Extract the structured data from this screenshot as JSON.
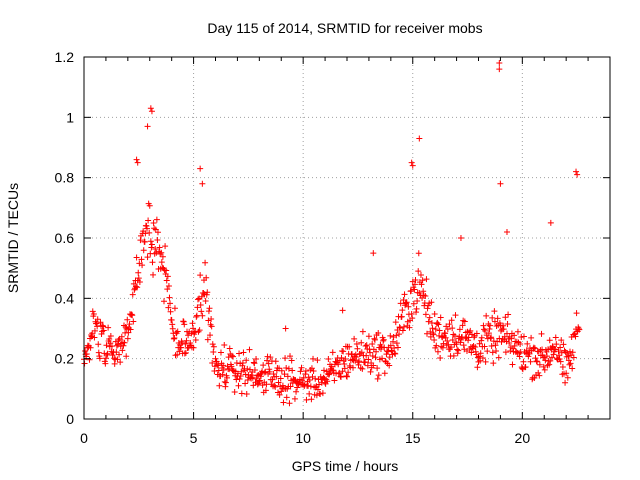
{
  "chart_data": {
    "type": "scatter",
    "title": "Day 115 of 2014, SRMTID for receiver mobs",
    "xlabel": "GPS time / hours",
    "ylabel": "SRMTID / TECUs",
    "xlim": [
      0,
      24
    ],
    "ylim": [
      0,
      1.2
    ],
    "grid": true,
    "marker": "+",
    "series": [
      {
        "name": "SRMTID",
        "color": "#ff0000",
        "profile": [
          {
            "x": 0.0,
            "y": 0.22
          },
          {
            "x": 0.5,
            "y": 0.3
          },
          {
            "x": 1.0,
            "y": 0.25
          },
          {
            "x": 1.5,
            "y": 0.22
          },
          {
            "x": 2.0,
            "y": 0.28
          },
          {
            "x": 2.5,
            "y": 0.5
          },
          {
            "x": 2.8,
            "y": 0.62
          },
          {
            "x": 3.2,
            "y": 0.6
          },
          {
            "x": 3.7,
            "y": 0.45
          },
          {
            "x": 4.2,
            "y": 0.28
          },
          {
            "x": 4.7,
            "y": 0.25
          },
          {
            "x": 5.2,
            "y": 0.35
          },
          {
            "x": 5.5,
            "y": 0.45
          },
          {
            "x": 6.0,
            "y": 0.17
          },
          {
            "x": 7.0,
            "y": 0.16
          },
          {
            "x": 8.0,
            "y": 0.15
          },
          {
            "x": 9.0,
            "y": 0.13
          },
          {
            "x": 10.0,
            "y": 0.12
          },
          {
            "x": 11.0,
            "y": 0.13
          },
          {
            "x": 12.0,
            "y": 0.2
          },
          {
            "x": 13.0,
            "y": 0.22
          },
          {
            "x": 14.0,
            "y": 0.22
          },
          {
            "x": 14.8,
            "y": 0.38
          },
          {
            "x": 15.3,
            "y": 0.45
          },
          {
            "x": 16.0,
            "y": 0.28
          },
          {
            "x": 17.0,
            "y": 0.28
          },
          {
            "x": 18.0,
            "y": 0.24
          },
          {
            "x": 19.0,
            "y": 0.28
          },
          {
            "x": 20.0,
            "y": 0.22
          },
          {
            "x": 21.0,
            "y": 0.2
          },
          {
            "x": 21.5,
            "y": 0.25
          },
          {
            "x": 22.0,
            "y": 0.15
          },
          {
            "x": 22.6,
            "y": 0.32
          }
        ],
        "spread": 0.12,
        "point_spacing_hours": 0.025,
        "peaks": [
          {
            "x": 3.05,
            "y": 1.03
          },
          {
            "x": 3.1,
            "y": 1.02
          },
          {
            "x": 2.9,
            "y": 0.97
          },
          {
            "x": 2.4,
            "y": 0.86
          },
          {
            "x": 2.45,
            "y": 0.85
          },
          {
            "x": 5.3,
            "y": 0.83
          },
          {
            "x": 5.4,
            "y": 0.78
          },
          {
            "x": 14.95,
            "y": 0.85
          },
          {
            "x": 15.0,
            "y": 0.84
          },
          {
            "x": 15.3,
            "y": 0.93
          },
          {
            "x": 18.95,
            "y": 1.18
          },
          {
            "x": 18.95,
            "y": 1.16
          },
          {
            "x": 19.0,
            "y": 0.78
          },
          {
            "x": 22.45,
            "y": 0.82
          },
          {
            "x": 22.5,
            "y": 0.81
          },
          {
            "x": 21.3,
            "y": 0.65
          },
          {
            "x": 17.2,
            "y": 0.6
          },
          {
            "x": 19.3,
            "y": 0.62
          },
          {
            "x": 9.2,
            "y": 0.3
          },
          {
            "x": 11.8,
            "y": 0.36
          },
          {
            "x": 13.2,
            "y": 0.55
          }
        ]
      }
    ],
    "xticks": [
      0,
      5,
      10,
      15,
      20
    ],
    "yticks": [
      0,
      0.2,
      0.4,
      0.6,
      0.8,
      1,
      1.2
    ],
    "xtick_labels": [
      "0",
      "5",
      "10",
      "15",
      "20"
    ],
    "ytick_labels": [
      "0",
      "0.2",
      "0.4",
      "0.6",
      "0.8",
      "1",
      "1.2"
    ]
  }
}
